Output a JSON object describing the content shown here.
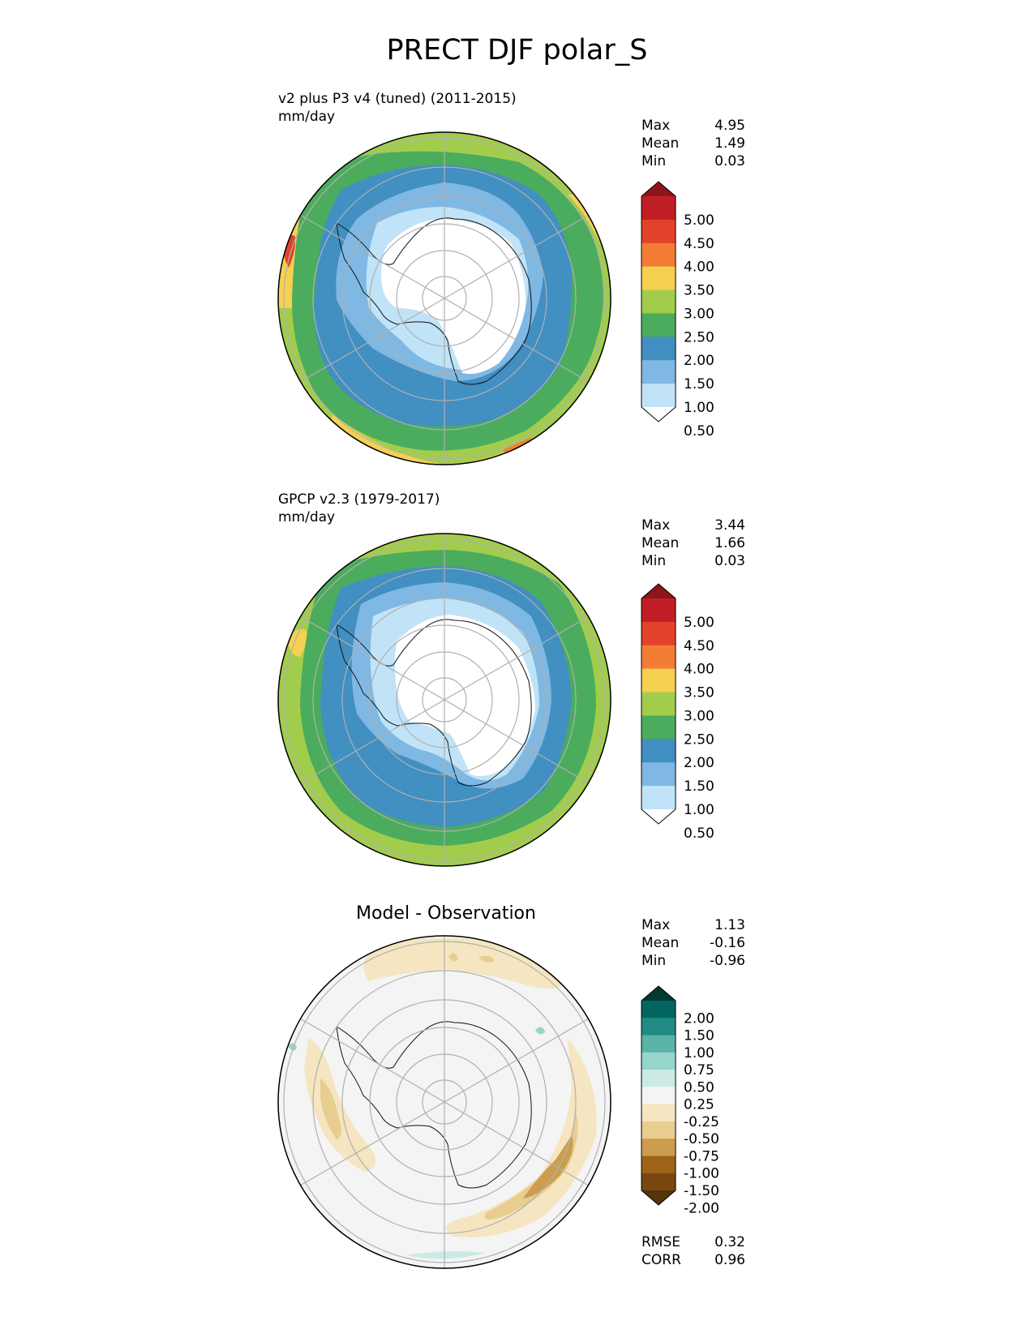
{
  "figure": {
    "title": "PRECT DJF polar_S"
  },
  "panels": [
    {
      "id": "test",
      "title_line1": "v2 plus P3 v4 (tuned) (2011-2015)",
      "title_line2": "mm/day",
      "stats": [
        {
          "label": "Max",
          "value": "4.95"
        },
        {
          "label": "Mean",
          "value": "1.49"
        },
        {
          "label": "Min",
          "value": "0.03"
        }
      ]
    },
    {
      "id": "reference",
      "title_line1": "GPCP v2.3 (1979-2017)",
      "title_line2": "mm/day",
      "stats": [
        {
          "label": "Max",
          "value": "3.44"
        },
        {
          "label": "Mean",
          "value": "1.66"
        },
        {
          "label": "Min",
          "value": "0.03"
        }
      ]
    },
    {
      "id": "diff",
      "title": "Model - Observation",
      "stats": [
        {
          "label": "Max",
          "value": "1.13"
        },
        {
          "label": "Mean",
          "value": "-0.16"
        },
        {
          "label": "Min",
          "value": "-0.96"
        }
      ],
      "metrics": [
        {
          "label": "RMSE",
          "value": "0.32"
        },
        {
          "label": "CORR",
          "value": "0.96"
        }
      ]
    }
  ],
  "colorbars": {
    "precip": {
      "labels": [
        "5.00",
        "4.50",
        "4.00",
        "3.50",
        "3.00",
        "2.50",
        "2.00",
        "1.50",
        "1.00",
        "0.50"
      ],
      "colors": [
        "#8e1518",
        "#c11f25",
        "#e2422b",
        "#f47d35",
        "#f6d050",
        "#a2cd4c",
        "#4bac5d",
        "#428fc2",
        "#7fb8e3",
        "#c0e3f7",
        "#ffffff"
      ]
    },
    "diff": {
      "labels": [
        "2.00",
        "1.50",
        "1.00",
        "0.75",
        "0.50",
        "0.25",
        "-0.25",
        "-0.50",
        "-0.75",
        "-1.00",
        "-1.50",
        "-2.00"
      ],
      "colors": [
        "#013a33",
        "#01665e",
        "#1f8b82",
        "#5ab3a7",
        "#97d5cb",
        "#cceae5",
        "#f4f4f4",
        "#f5e5c0",
        "#e8cd91",
        "#cc9d4f",
        "#9e6418",
        "#7b4710",
        "#553408"
      ]
    }
  },
  "chart_data": {
    "type": "heatmap",
    "projection": "south-polar-stereographic",
    "region": "polar_S",
    "variable": "PRECT",
    "season": "DJF",
    "units": "mm/day",
    "levels": [
      0.5,
      1.0,
      1.5,
      2.0,
      2.5,
      3.0,
      3.5,
      4.0,
      4.5,
      5.0
    ],
    "diff_levels": [
      -2.0,
      -1.5,
      -1.0,
      -0.75,
      -0.5,
      -0.25,
      0.25,
      0.5,
      0.75,
      1.0,
      1.5,
      2.0
    ],
    "fields": [
      {
        "panel": "v2 plus P3 v4 (tuned) (2011-2015)",
        "max": 4.95,
        "mean": 1.49,
        "min": 0.03
      },
      {
        "panel": "GPCP v2.3 (1979-2017)",
        "max": 3.44,
        "mean": 1.66,
        "min": 0.03
      },
      {
        "panel": "Model - Observation",
        "max": 1.13,
        "mean": -0.16,
        "min": -0.96,
        "rmse": 0.32,
        "corr": 0.96
      }
    ]
  }
}
